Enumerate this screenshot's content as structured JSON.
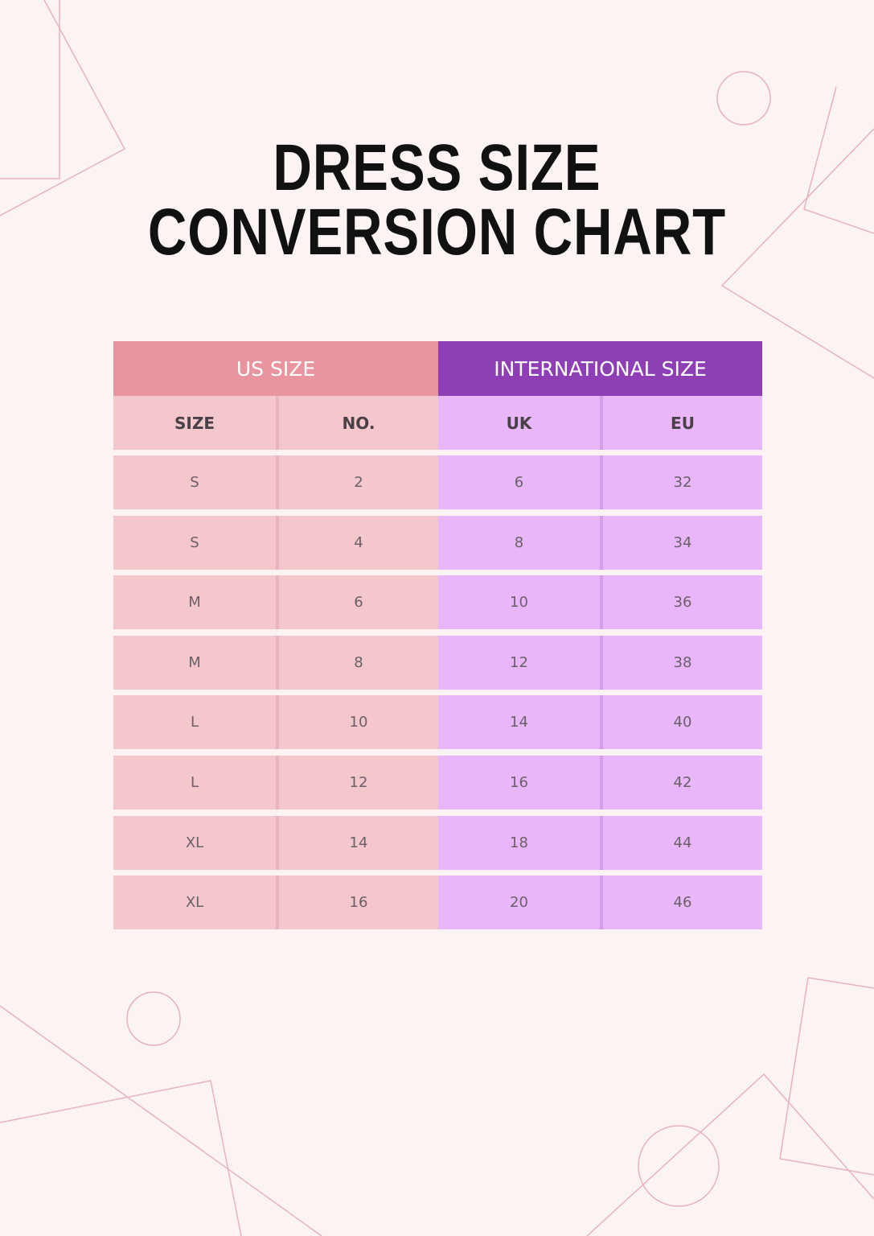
{
  "header": {
    "title_lines": [
      "DRESS SIZE",
      "CONVERSION CHART"
    ]
  },
  "table": {
    "groups": [
      "US SIZE",
      "INTERNATIONAL SIZE"
    ],
    "columns": [
      "SIZE",
      "NO.",
      "UK",
      "EU"
    ],
    "rows": [
      [
        "S",
        2,
        6,
        32
      ],
      [
        "S",
        4,
        8,
        34
      ],
      [
        "M",
        6,
        10,
        36
      ],
      [
        "M",
        8,
        12,
        38
      ],
      [
        "L",
        10,
        14,
        40
      ],
      [
        "L",
        12,
        16,
        42
      ],
      [
        "XL",
        14,
        18,
        44
      ],
      [
        "XL",
        16,
        20,
        46
      ]
    ]
  }
}
